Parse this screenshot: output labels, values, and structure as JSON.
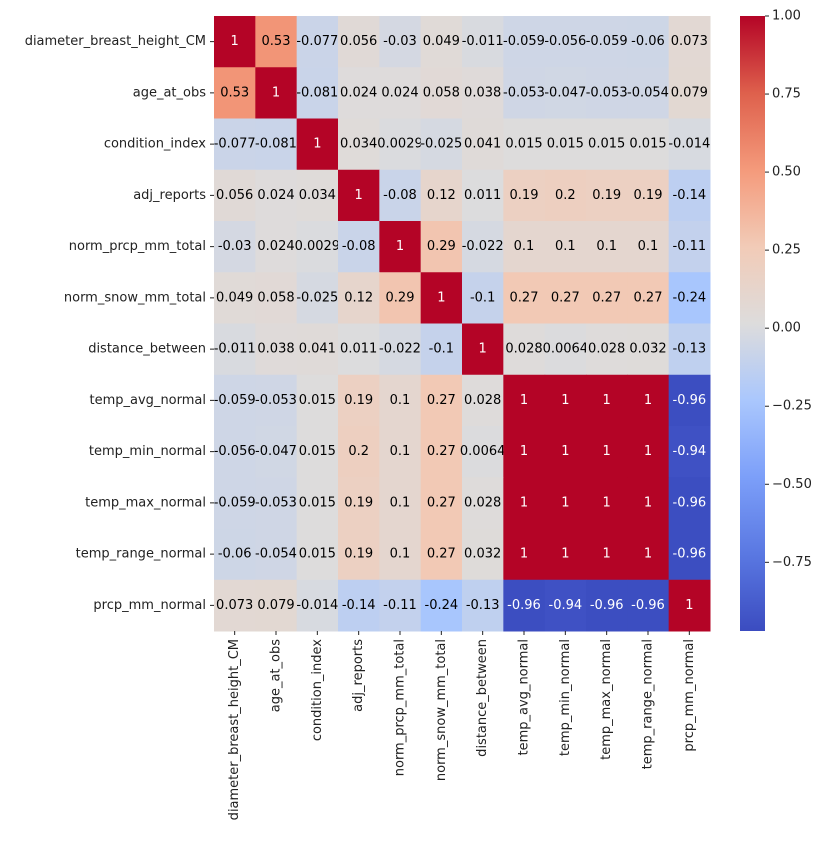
{
  "chart_data": {
    "type": "heatmap",
    "x": [
      "diameter_breast_height_CM",
      "age_at_obs",
      "condition_index",
      "adj_reports",
      "norm_prcp_mm_total",
      "norm_snow_mm_total",
      "distance_between",
      "temp_avg_normal",
      "temp_min_normal",
      "temp_max_normal",
      "temp_range_normal",
      "prcp_mm_normal"
    ],
    "y": [
      "diameter_breast_height_CM",
      "age_at_obs",
      "condition_index",
      "adj_reports",
      "norm_prcp_mm_total",
      "norm_snow_mm_total",
      "distance_between",
      "temp_avg_normal",
      "temp_min_normal",
      "temp_max_normal",
      "temp_range_normal",
      "prcp_mm_normal"
    ],
    "values": [
      [
        1,
        0.53,
        -0.077,
        0.056,
        -0.03,
        0.049,
        -0.011,
        -0.059,
        -0.056,
        -0.059,
        -0.06,
        0.073
      ],
      [
        0.53,
        1,
        -0.081,
        0.024,
        0.024,
        0.058,
        0.038,
        -0.053,
        -0.047,
        -0.053,
        -0.054,
        0.079
      ],
      [
        -0.077,
        -0.081,
        1,
        0.034,
        0.0029,
        -0.025,
        0.041,
        0.015,
        0.015,
        0.015,
        0.015,
        -0.014
      ],
      [
        0.056,
        0.024,
        0.034,
        1,
        -0.08,
        0.12,
        0.011,
        0.19,
        0.2,
        0.19,
        0.19,
        -0.14
      ],
      [
        -0.03,
        0.024,
        0.0029,
        -0.08,
        1,
        0.29,
        -0.022,
        0.1,
        0.1,
        0.1,
        0.1,
        -0.11
      ],
      [
        0.049,
        0.058,
        -0.025,
        0.12,
        0.29,
        1,
        -0.1,
        0.27,
        0.27,
        0.27,
        0.27,
        -0.24
      ],
      [
        -0.011,
        0.038,
        0.041,
        0.011,
        -0.022,
        -0.1,
        1,
        0.028,
        0.0064,
        0.028,
        0.032,
        -0.13
      ],
      [
        -0.059,
        -0.053,
        0.015,
        0.19,
        0.1,
        0.27,
        0.028,
        1,
        1,
        1,
        1,
        -0.96
      ],
      [
        -0.056,
        -0.047,
        0.015,
        0.2,
        0.1,
        0.27,
        0.0064,
        1,
        1,
        1,
        1,
        -0.94
      ],
      [
        -0.059,
        -0.053,
        0.015,
        0.19,
        0.1,
        0.27,
        0.028,
        1,
        1,
        1,
        1,
        -0.96
      ],
      [
        -0.06,
        -0.054,
        0.015,
        0.19,
        0.1,
        0.27,
        0.032,
        1,
        1,
        1,
        1,
        -0.96
      ],
      [
        0.073,
        0.079,
        -0.014,
        -0.14,
        -0.11,
        -0.24,
        -0.13,
        -0.96,
        -0.94,
        -0.96,
        -0.96,
        1
      ]
    ],
    "colormap": "coolwarm",
    "zlim": [
      -0.97,
      1
    ],
    "zticks": [
      {
        "value": 1,
        "label": "1.00"
      },
      {
        "value": 0.75,
        "label": "0.75"
      },
      {
        "value": 0.5,
        "label": "0.50"
      },
      {
        "value": 0.25,
        "label": "0.25"
      },
      {
        "value": 0,
        "label": "0.00"
      },
      {
        "value": -0.25,
        "label": "−0.25"
      },
      {
        "value": -0.5,
        "label": "−0.50"
      },
      {
        "value": -0.75,
        "label": "−0.75"
      }
    ]
  }
}
